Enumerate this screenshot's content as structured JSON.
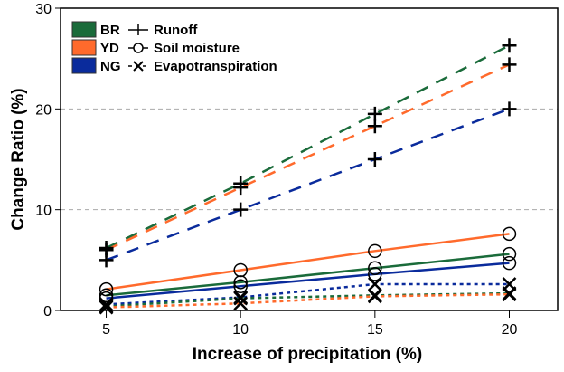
{
  "chart_data": {
    "type": "line",
    "title": "",
    "xlabel": "Increase of precipitation (%)",
    "ylabel": "Change Ratio (%)",
    "x": [
      5,
      10,
      15,
      20
    ],
    "xticks": [
      "5",
      "10",
      "15",
      "20"
    ],
    "yticks": [
      "0",
      "10",
      "20",
      "30"
    ],
    "xlim": [
      3.3,
      21.8
    ],
    "ylim": [
      0,
      30
    ],
    "grid": "horizontal dashed at 10 and 20",
    "legend_placement": "top-left",
    "regions": [
      {
        "name": "BR",
        "color": "#1a6b3a"
      },
      {
        "name": "YD",
        "color": "#ff6a2c"
      },
      {
        "name": "NG",
        "color": "#0a2b9c"
      }
    ],
    "variables": [
      {
        "name": "Runoff",
        "symbol": "+",
        "dash": "dashed"
      },
      {
        "name": "Soil moisture",
        "symbol": "o",
        "dash": "solid"
      },
      {
        "name": "Evapotranspiration",
        "symbol": "x",
        "dash": "dotted"
      }
    ],
    "series": [
      {
        "name": "BR Runoff",
        "region": "BR",
        "variable": "Runoff",
        "values": [
          6.2,
          12.6,
          19.5,
          26.3
        ]
      },
      {
        "name": "YD Runoff",
        "region": "YD",
        "variable": "Runoff",
        "values": [
          6.0,
          12.2,
          18.3,
          24.4
        ]
      },
      {
        "name": "NG Runoff",
        "region": "NG",
        "variable": "Runoff",
        "values": [
          5.0,
          10.0,
          15.0,
          20.0
        ]
      },
      {
        "name": "YD Soil moisture",
        "region": "YD",
        "variable": "Soil moisture",
        "values": [
          2.1,
          4.0,
          5.9,
          7.6
        ]
      },
      {
        "name": "BR Soil moisture",
        "region": "BR",
        "variable": "Soil moisture",
        "values": [
          1.5,
          2.8,
          4.2,
          5.6
        ]
      },
      {
        "name": "NG Soil moisture",
        "region": "NG",
        "variable": "Soil moisture",
        "values": [
          1.2,
          2.4,
          3.6,
          4.7
        ]
      },
      {
        "name": "NG Evapotranspiration",
        "region": "NG",
        "variable": "Evapotranspiration",
        "values": [
          0.6,
          1.3,
          2.6,
          2.6
        ]
      },
      {
        "name": "BR Evapotranspiration",
        "region": "BR",
        "variable": "Evapotranspiration",
        "values": [
          0.4,
          1.2,
          1.5,
          1.7
        ]
      },
      {
        "name": "YD Evapotranspiration",
        "region": "YD",
        "variable": "Evapotranspiration",
        "values": [
          0.3,
          0.7,
          1.4,
          1.6
        ]
      }
    ]
  }
}
